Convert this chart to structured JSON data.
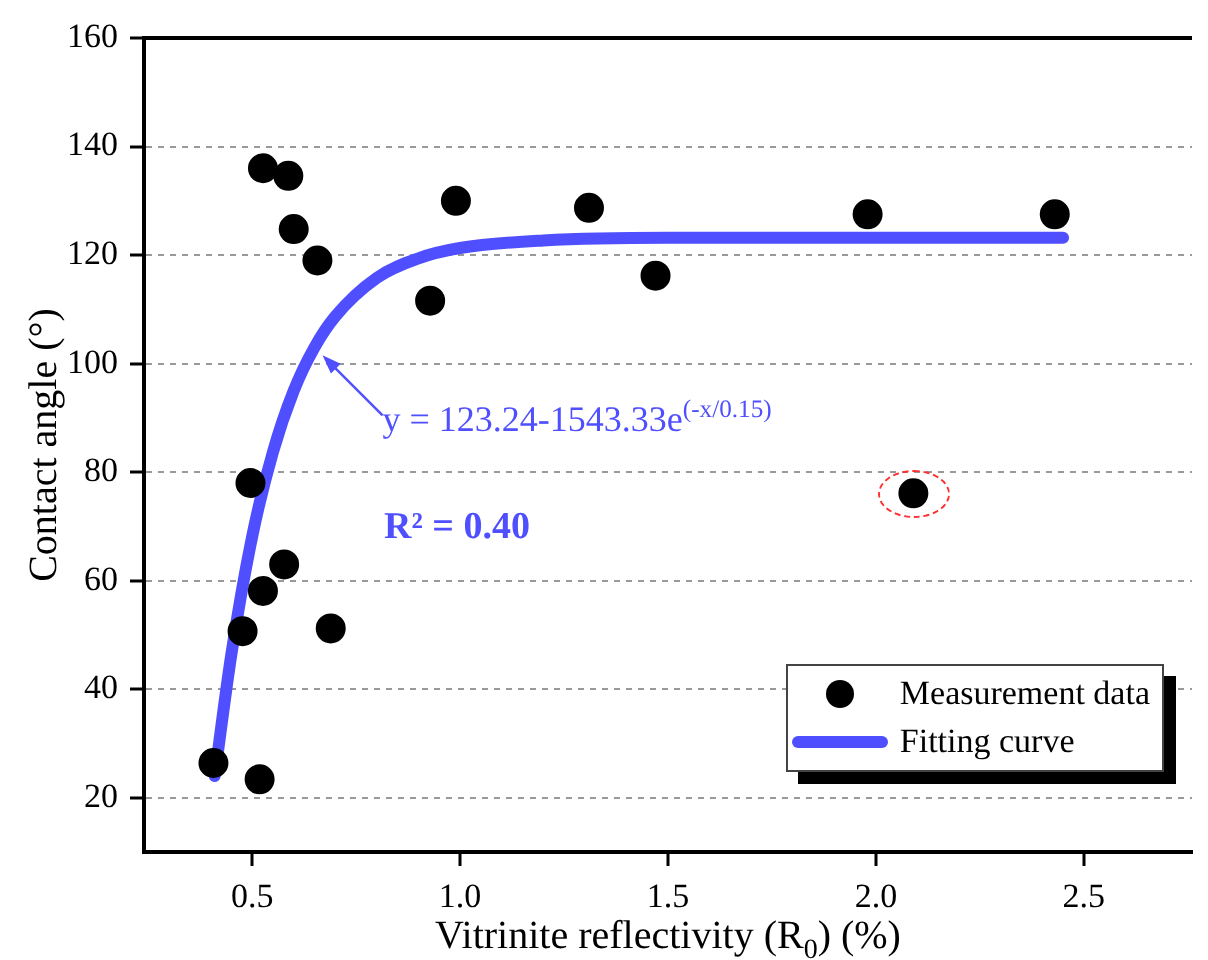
{
  "chart_data": {
    "type": "scatter",
    "xlabel": "Vitrinite reflectivity (R$_{0}$) (%)",
    "ylabel": "Contact angle (°)",
    "xlim": [
      0.24,
      2.76
    ],
    "xticks": [
      0.5,
      {
        "value": 1,
        "label": "1.0"
      },
      1.5,
      {
        "value": 2,
        "label": "2.0"
      },
      2.5
    ],
    "ylim": [
      10,
      160
    ],
    "yticks": [
      20,
      40,
      60,
      80,
      100,
      120,
      140,
      160
    ],
    "grid": "y",
    "legend": "bottom right",
    "series": [
      {
        "name": "Measurement data",
        "marker": "circle",
        "color": "#000000",
        "x": [
          0.526,
          0.587,
          0.6,
          0.657,
          0.928,
          0.99,
          1.31,
          1.47,
          1.98,
          2.43,
          2.09,
          0.496,
          0.577,
          0.526,
          0.477,
          0.689,
          0.407,
          0.518
        ],
        "values": [
          136,
          134.6,
          124.8,
          119,
          111.6,
          130,
          128.7,
          116.2,
          127.5,
          127.5,
          76.1,
          78,
          63,
          58.1,
          50.7,
          51.2,
          26.4,
          23.4
        ]
      },
      {
        "name": "Fitting curve",
        "type": "line",
        "color": "#4f4fff",
        "x": [
          0.41,
          0.45,
          0.5,
          0.55,
          0.6,
          0.65,
          0.7,
          0.8,
          0.9,
          1.0,
          1.2,
          1.5,
          2.0,
          2.45
        ],
        "values": [
          24,
          46.4,
          68.1,
          83.7,
          95,
          103,
          108.7,
          115.8,
          119.4,
          121.3,
          122.7,
          123.2,
          123.2,
          123.2
        ]
      }
    ],
    "annotations": [
      {
        "text": "y = 123.24-1543.33e$^{(-x/0.15)}$",
        "x": 0.65,
        "y": 103
      },
      "R² = 0.40"
    ]
  }
}
